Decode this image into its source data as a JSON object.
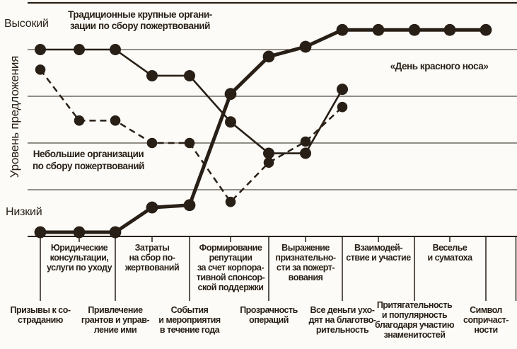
{
  "chart_data": {
    "type": "line",
    "title": "",
    "ylabel": "Уровень предложения",
    "y_axis": {
      "top_label": "Высокий",
      "bottom_label": "Низкий",
      "scale_min": 0,
      "scale_max": 5,
      "gridlines": 6,
      "grid": "horizontal lines only"
    },
    "categories": [
      "Призывы к состраданию",
      "Юридические консультации, услуги по уходу",
      "Привлечение грантов и управление ими",
      "Затраты на сбор пожертвований",
      "События и мероприятия в течение года",
      "Формирование репутации за счет корпоративной спонсорской поддержки",
      "Прозрачность операций",
      "Выражение признательности за пожертвования",
      "Все деньги уходят на благотворительность",
      "Взаимодействие и участие",
      "Притягательность и популярность благодаря участию знаменитостей",
      "Веселье и суматоха",
      "Символ сопричастности"
    ],
    "factors": [
      {
        "label_row": "lower",
        "lines": [
          "Призывы к со-",
          "страданию"
        ]
      },
      {
        "label_row": "upper",
        "lines": [
          "Юридические",
          "консультации,",
          "услуги по уходу"
        ]
      },
      {
        "label_row": "lower",
        "lines": [
          "Привлечение",
          "грантов и управ-",
          "ление ими"
        ]
      },
      {
        "label_row": "upper",
        "lines": [
          "Затраты",
          "на сбор по-",
          "жертвований"
        ]
      },
      {
        "label_row": "lower",
        "lines": [
          "События",
          "и мероприятия",
          "в течение года"
        ]
      },
      {
        "label_row": "upper",
        "lines": [
          "Формирование",
          "репутации",
          "за счет корпора-",
          "тивной спонсор-",
          "ской поддержки"
        ]
      },
      {
        "label_row": "lower",
        "lines": [
          "Прозрачность",
          "операций"
        ]
      },
      {
        "label_row": "upper",
        "lines": [
          "Выражение",
          "признательно-",
          "сти за пожерт-",
          "вования"
        ]
      },
      {
        "label_row": "lower",
        "lines": [
          "Все деньги ухо-",
          "дят на благотво-",
          "рительность"
        ]
      },
      {
        "label_row": "upper",
        "lines": [
          "Взаимодей-",
          "ствие и участие"
        ]
      },
      {
        "label_row": "lower",
        "lines": [
          "Притягательность",
          "и популярность",
          "благодаря участию",
          "знаменитостей"
        ]
      },
      {
        "label_row": "upper",
        "lines": [
          "Веселье",
          "и суматоха"
        ]
      },
      {
        "label_row": "lower",
        "lines": [
          "Символ",
          "сопричаст-",
          "ности"
        ]
      }
    ],
    "series": [
      {
        "name": "Традиционные крупные организации по сбору пожертвований",
        "annotation": "Традиционные крупные органи-\nзации по сбору пожертвований",
        "line_style": "solid-thin",
        "values": [
          4.0,
          4.0,
          4.0,
          3.44,
          3.44,
          2.45,
          1.78,
          1.78,
          3.15
        ]
      },
      {
        "name": "Небольшие организации по сбору пожертвований",
        "annotation": "Небольшие организации\nпо сбору пожертвований",
        "line_style": "dashed",
        "values": [
          3.57,
          2.48,
          2.48,
          2.0,
          2.0,
          0.74,
          1.58,
          2.03,
          2.77
        ]
      },
      {
        "name": "«День красного носа»",
        "annotation": "«День красного носа»",
        "line_style": "solid-thick",
        "values": [
          0.09,
          0.09,
          0.09,
          0.62,
          0.67,
          3.05,
          3.85,
          4.06,
          4.42,
          4.42,
          4.42,
          4.42,
          4.42
        ]
      }
    ],
    "ink_color": "#281f16",
    "background_color": "#fcfbf7",
    "legend_position": "inline annotations"
  }
}
